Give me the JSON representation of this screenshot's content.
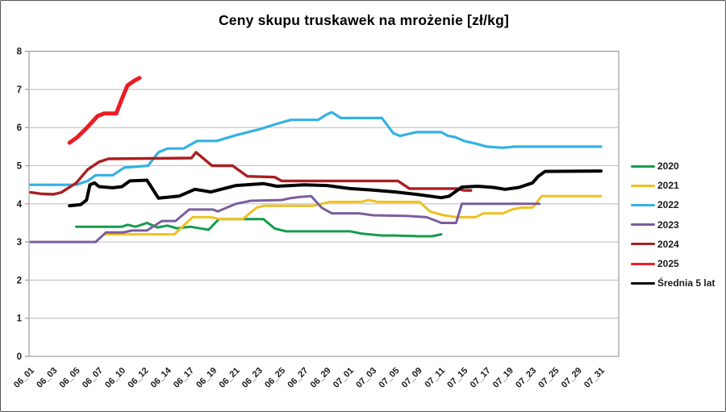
{
  "chart_data": {
    "type": "line",
    "title": "Ceny skupu truskawek na mrożenie [zł/kg]",
    "ylabel": "",
    "xlabel": "",
    "ylim": [
      0,
      8
    ],
    "yticks": [
      0,
      1,
      2,
      3,
      4,
      5,
      6,
      7,
      8
    ],
    "grid": true,
    "legend_position": "right",
    "x_unit": "category_index (fractional values fall between the labelled dates)",
    "categories": [
      "06_01",
      "06_03",
      "06_05",
      "06_07",
      "06_10",
      "06_12",
      "06_14",
      "06_17",
      "06_19",
      "06_21",
      "06_23",
      "06_25",
      "06_27",
      "06_29",
      "07_01",
      "07_03",
      "07_05",
      "07_09",
      "07_11",
      "07_15",
      "07_17",
      "07_19",
      "07_23",
      "07_25",
      "07_29",
      "07_31"
    ],
    "grid_color": "#c2c2c2",
    "frame_color": "#9b9b9b",
    "series": [
      {
        "name": "2020",
        "color": "#179b4e",
        "width": 3,
        "points": [
          [
            2,
            3.4
          ],
          [
            3,
            3.4
          ],
          [
            4,
            3.4
          ],
          [
            4.25,
            3.45
          ],
          [
            4.6,
            3.4
          ],
          [
            5.1,
            3.5
          ],
          [
            5.55,
            3.38
          ],
          [
            6,
            3.43
          ],
          [
            6.4,
            3.36
          ],
          [
            7,
            3.4
          ],
          [
            7.8,
            3.32
          ],
          [
            8.25,
            3.6
          ],
          [
            10.2,
            3.6
          ],
          [
            10.7,
            3.35
          ],
          [
            11.2,
            3.28
          ],
          [
            14,
            3.28
          ],
          [
            14.5,
            3.22
          ],
          [
            15.4,
            3.17
          ],
          [
            16,
            3.17
          ],
          [
            17,
            3.15
          ],
          [
            17.6,
            3.15
          ],
          [
            18,
            3.2
          ]
        ]
      },
      {
        "name": "2021",
        "color": "#efc020",
        "width": 3,
        "points": [
          [
            3.2,
            3.2
          ],
          [
            6.3,
            3.2
          ],
          [
            7.1,
            3.65
          ],
          [
            7.9,
            3.65
          ],
          [
            8.3,
            3.6
          ],
          [
            9.3,
            3.6
          ],
          [
            9.9,
            3.9
          ],
          [
            10.25,
            3.95
          ],
          [
            12.4,
            3.95
          ],
          [
            13.1,
            4.05
          ],
          [
            14.5,
            4.05
          ],
          [
            14.8,
            4.1
          ],
          [
            15.2,
            4.05
          ],
          [
            17.05,
            4.05
          ],
          [
            17.5,
            3.8
          ],
          [
            18.1,
            3.7
          ],
          [
            18.7,
            3.65
          ],
          [
            19.5,
            3.65
          ],
          [
            19.85,
            3.75
          ],
          [
            20.7,
            3.75
          ],
          [
            21.1,
            3.85
          ],
          [
            21.5,
            3.9
          ],
          [
            22,
            3.9
          ],
          [
            22.4,
            4.2
          ],
          [
            25,
            4.2
          ]
        ]
      },
      {
        "name": "2022",
        "color": "#33b1e3",
        "width": 3.2,
        "points": [
          [
            0,
            4.5
          ],
          [
            2,
            4.5
          ],
          [
            2.5,
            4.6
          ],
          [
            2.85,
            4.75
          ],
          [
            3.6,
            4.75
          ],
          [
            4.1,
            4.95
          ],
          [
            5.15,
            5.0
          ],
          [
            5.6,
            5.35
          ],
          [
            6,
            5.45
          ],
          [
            6.7,
            5.45
          ],
          [
            7,
            5.55
          ],
          [
            7.3,
            5.65
          ],
          [
            8.15,
            5.65
          ],
          [
            9,
            5.8
          ],
          [
            10,
            5.95
          ],
          [
            10.8,
            6.1
          ],
          [
            11.4,
            6.2
          ],
          [
            12.6,
            6.2
          ],
          [
            13,
            6.35
          ],
          [
            13.2,
            6.4
          ],
          [
            13.6,
            6.25
          ],
          [
            15.4,
            6.25
          ],
          [
            15.9,
            5.85
          ],
          [
            16.2,
            5.78
          ],
          [
            16.9,
            5.88
          ],
          [
            18,
            5.88
          ],
          [
            18.3,
            5.78
          ],
          [
            18.6,
            5.75
          ],
          [
            19,
            5.65
          ],
          [
            19.5,
            5.58
          ],
          [
            20,
            5.5
          ],
          [
            20.7,
            5.47
          ],
          [
            21.2,
            5.5
          ],
          [
            25,
            5.5
          ]
        ]
      },
      {
        "name": "2023",
        "color": "#7a5d9e",
        "width": 3,
        "points": [
          [
            0,
            3.0
          ],
          [
            2.85,
            3.0
          ],
          [
            3.3,
            3.25
          ],
          [
            4.05,
            3.25
          ],
          [
            4.45,
            3.3
          ],
          [
            5.1,
            3.3
          ],
          [
            5.75,
            3.55
          ],
          [
            6.35,
            3.55
          ],
          [
            6.95,
            3.85
          ],
          [
            8,
            3.85
          ],
          [
            8.2,
            3.8
          ],
          [
            9,
            4.0
          ],
          [
            9.65,
            4.08
          ],
          [
            11,
            4.1
          ],
          [
            11.4,
            4.15
          ],
          [
            11.8,
            4.18
          ],
          [
            12.3,
            4.2
          ],
          [
            12.75,
            3.9
          ],
          [
            13.2,
            3.75
          ],
          [
            14.4,
            3.75
          ],
          [
            15,
            3.7
          ],
          [
            16.6,
            3.68
          ],
          [
            17.35,
            3.65
          ],
          [
            17.8,
            3.55
          ],
          [
            18,
            3.5
          ],
          [
            18.65,
            3.5
          ],
          [
            18.9,
            4.0
          ],
          [
            22.3,
            4.0
          ]
        ]
      },
      {
        "name": "2024",
        "color": "#ab1e21",
        "width": 3.4,
        "points": [
          [
            0,
            4.3
          ],
          [
            0.5,
            4.26
          ],
          [
            1,
            4.25
          ],
          [
            1.35,
            4.3
          ],
          [
            2,
            4.55
          ],
          [
            2.5,
            4.9
          ],
          [
            3,
            5.1
          ],
          [
            3.4,
            5.18
          ],
          [
            7.05,
            5.2
          ],
          [
            7.25,
            5.35
          ],
          [
            7.95,
            5.0
          ],
          [
            8.85,
            5.0
          ],
          [
            9.5,
            4.72
          ],
          [
            10.7,
            4.7
          ],
          [
            11,
            4.6
          ],
          [
            16.1,
            4.6
          ],
          [
            16.6,
            4.4
          ],
          [
            18.7,
            4.4
          ],
          [
            19,
            4.35
          ],
          [
            19.3,
            4.35
          ]
        ]
      },
      {
        "name": "2025",
        "color": "#ec1c24",
        "width": 5,
        "points": [
          [
            1.7,
            5.6
          ],
          [
            2.05,
            5.75
          ],
          [
            2.47,
            6.0
          ],
          [
            2.93,
            6.3
          ],
          [
            3.22,
            6.37
          ],
          [
            3.75,
            6.37
          ],
          [
            4.0,
            6.75
          ],
          [
            4.24,
            7.1
          ],
          [
            4.52,
            7.22
          ],
          [
            4.77,
            7.3
          ]
        ]
      },
      {
        "name": "Średnia 5 lat",
        "color": "#000000",
        "width": 4,
        "points": [
          [
            1.7,
            3.95
          ],
          [
            2.2,
            3.98
          ],
          [
            2.45,
            4.1
          ],
          [
            2.6,
            4.5
          ],
          [
            2.8,
            4.55
          ],
          [
            3,
            4.45
          ],
          [
            3.6,
            4.42
          ],
          [
            4,
            4.45
          ],
          [
            4.35,
            4.6
          ],
          [
            5.1,
            4.62
          ],
          [
            5.6,
            4.15
          ],
          [
            6.5,
            4.2
          ],
          [
            7.2,
            4.38
          ],
          [
            7.9,
            4.31
          ],
          [
            9,
            4.48
          ],
          [
            10.2,
            4.53
          ],
          [
            10.8,
            4.46
          ],
          [
            12,
            4.5
          ],
          [
            13,
            4.48
          ],
          [
            14,
            4.4
          ],
          [
            15,
            4.36
          ],
          [
            16,
            4.31
          ],
          [
            17,
            4.24
          ],
          [
            18,
            4.16
          ],
          [
            18.35,
            4.2
          ],
          [
            18.9,
            4.44
          ],
          [
            19.6,
            4.46
          ],
          [
            20.3,
            4.43
          ],
          [
            20.8,
            4.38
          ],
          [
            21.4,
            4.43
          ],
          [
            22,
            4.55
          ],
          [
            22.25,
            4.72
          ],
          [
            22.55,
            4.85
          ],
          [
            25,
            4.86
          ]
        ]
      }
    ]
  }
}
